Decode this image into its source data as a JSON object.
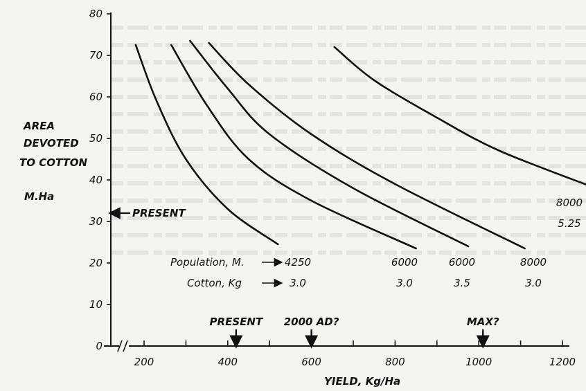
{
  "chart_data": {
    "type": "line",
    "xlabel": "YIELD, Kg/Ha",
    "ylabel": [
      "AREA",
      "DEVOTED",
      "TO COTTON",
      "M.Ha"
    ],
    "x_ticks": [
      "200",
      "400",
      "600",
      "800",
      "1000",
      "1200"
    ],
    "y_ticks": [
      "0",
      "10",
      "20",
      "30",
      "40",
      "50",
      "60",
      "70",
      "80"
    ],
    "xlim": [
      100,
      1280
    ],
    "ylim": [
      0,
      80
    ],
    "grid": false,
    "row_labels": [
      "Population, M.",
      "Cotton, Kg"
    ],
    "series": [
      {
        "population": "4250",
        "cotton": "3.0",
        "x": [
          180,
          230,
          300,
          400,
          520
        ],
        "y": [
          72.5,
          59,
          45,
          33,
          24.5
        ]
      },
      {
        "population": "6000",
        "cotton": "3.0",
        "x": [
          265,
          350,
          450,
          600,
          850
        ],
        "y": [
          72.5,
          58,
          45,
          35,
          23.5
        ]
      },
      {
        "population": "6000",
        "cotton": "3.5",
        "x": [
          310,
          400,
          500,
          700,
          975
        ],
        "y": [
          73.5,
          62,
          51,
          38,
          24
        ]
      },
      {
        "population": "8000",
        "cotton": "3.0",
        "x": [
          355,
          450,
          600,
          800,
          1110
        ],
        "y": [
          73,
          63,
          51,
          39,
          23.5
        ]
      },
      {
        "population": "8000",
        "cotton": "5.25",
        "x": [
          655,
          750,
          900,
          1050,
          1280
        ],
        "y": [
          72,
          64,
          55,
          47,
          38
        ]
      }
    ],
    "annotations": {
      "y_present": {
        "label": "PRESENT",
        "y": 32
      },
      "x_markers": [
        {
          "label": "PRESENT",
          "x": 420
        },
        {
          "label": "2000 AD?",
          "x": 600
        },
        {
          "label": "MAX?",
          "x": 1010
        }
      ]
    },
    "colors": {
      "line": "#111111",
      "background": "#f4f4f1"
    }
  }
}
